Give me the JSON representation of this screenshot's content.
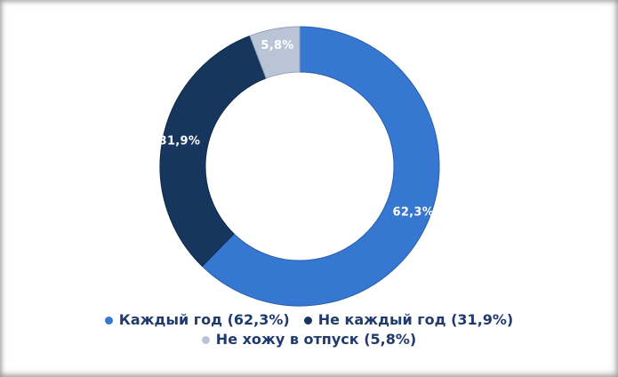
{
  "chart_data": {
    "type": "pie",
    "subtype": "donut",
    "title": "",
    "start_angle_deg": 0,
    "direction": "clockwise",
    "total": 100,
    "segments": [
      {
        "name": "Каждый год",
        "value": 62.3,
        "value_label": "62,3%",
        "legend_label": "Каждый год (62,3%)",
        "color": "#3577d1",
        "stroke_color": "#2b5fa9",
        "value_label_color": "#ffffff"
      },
      {
        "name": "Не каждый год",
        "value": 31.9,
        "value_label": "31,9%",
        "legend_label": "Не каждый год (31,9%)",
        "color": "#17365d",
        "stroke_color": "#102946",
        "value_label_color": "#ffffff"
      },
      {
        "name": "Не хожу в отпуск",
        "value": 5.8,
        "value_label": "5,8%",
        "legend_label": "Не хожу в отпуск (5,8%)",
        "color": "#b9c4d6",
        "stroke_color": "#94a3bc",
        "value_label_color": "#ffffff"
      }
    ],
    "legend_position": "bottom",
    "legend_rows": [
      [
        0,
        1
      ],
      [
        2
      ]
    ],
    "legend_text_color": "#1f3b6d",
    "background_color": "#ffffff",
    "hole_color": "#ffffff"
  }
}
